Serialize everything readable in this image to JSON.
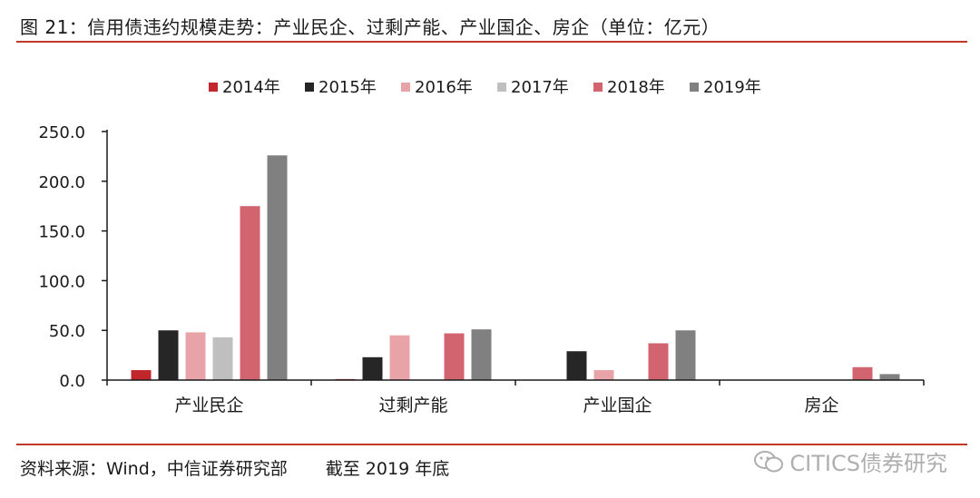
{
  "figure": {
    "title": "图 21：信用债违约规模走势：产业民企、过剩产能、产业国企、房企（单位：亿元）",
    "source": "资料来源：Wind，中信证券研究部",
    "cutoff": "截至 2019 年底",
    "watermark": "CITICS债券研究"
  },
  "chart_data": {
    "type": "bar",
    "title": "信用债违约规模走势：产业民企、过剩产能、产业国企、房企（单位：亿元）",
    "xlabel": "",
    "ylabel": "亿元",
    "ylim": [
      0,
      250
    ],
    "yticks": [
      "0.0",
      "50.0",
      "100.0",
      "150.0",
      "200.0",
      "250.0"
    ],
    "categories": [
      "产业民企",
      "过剩产能",
      "产业国企",
      "房企"
    ],
    "legend_position": "top",
    "series": [
      {
        "name": "2014年",
        "color": "#c0262c",
        "values": [
          10,
          1,
          0,
          0
        ]
      },
      {
        "name": "2015年",
        "color": "#262626",
        "values": [
          50,
          23,
          29,
          0
        ]
      },
      {
        "name": "2016年",
        "color": "#e8a3a8",
        "values": [
          48,
          45,
          10,
          0
        ]
      },
      {
        "name": "2017年",
        "color": "#bfbfbf",
        "values": [
          43,
          0,
          0,
          0
        ]
      },
      {
        "name": "2018年",
        "color": "#d26470",
        "values": [
          175,
          47,
          37,
          13
        ]
      },
      {
        "name": "2019年",
        "color": "#808080",
        "values": [
          226,
          51,
          50,
          6
        ]
      }
    ]
  }
}
